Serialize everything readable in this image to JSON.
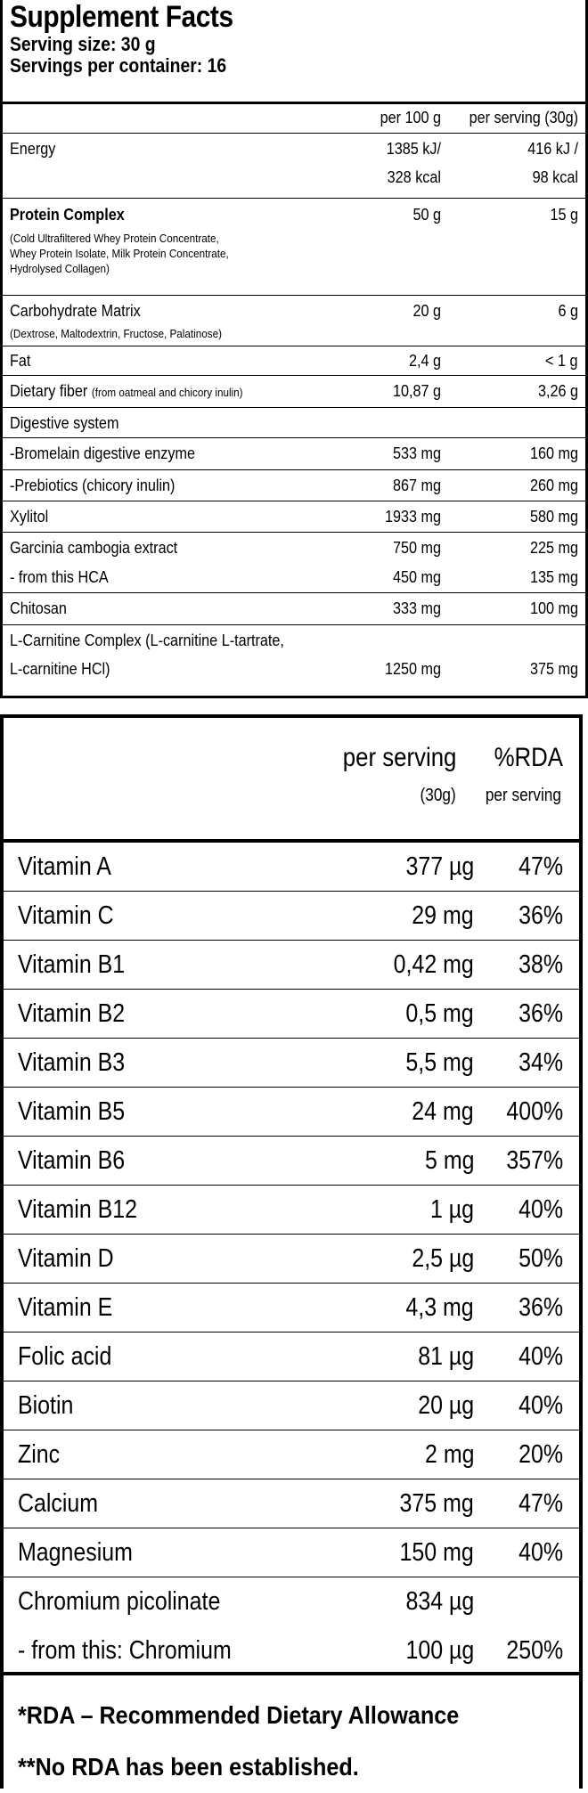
{
  "facts": {
    "title": "Supplement Facts",
    "serving_size": "Serving size: 30 g",
    "servings_per_container": "Servings per container: 16",
    "col_per100": "per 100 g",
    "col_perserving": "per serving (30g)",
    "energy": {
      "name": "Energy",
      "v1a": "1385 kJ/",
      "v1b": "328 kcal",
      "v2a": "416 kJ /",
      "v2b": "98 kcal"
    },
    "protein": {
      "name": "Protein Complex",
      "note1": "(Cold Ultrafiltered Whey Protein Concentrate,",
      "note2": "Whey Protein Isolate, Milk Protein Concentrate,",
      "note3": "Hydrolysed Collagen)",
      "v1": "50 g",
      "v2": "15 g"
    },
    "carb": {
      "name": "Carbohydrate Matrix",
      "note1": "(Dextrose, Maltodextrin, Fructose, Palatinose)",
      "v1": "20 g",
      "v2": "6 g"
    },
    "fat": {
      "name": "Fat",
      "v1": "2,4 g",
      "v2": "< 1 g"
    },
    "fiber": {
      "name": "Dietary fiber",
      "note": "(from oatmeal and chicory inulin)",
      "v1": "10,87 g",
      "v2": "3,26 g"
    },
    "digestive": {
      "name": "Digestive system"
    },
    "bromelain": {
      "name": "-Bromelain digestive enzyme",
      "v1": "533 mg",
      "v2": "160 mg"
    },
    "prebiotics": {
      "name": "-Prebiotics (chicory inulin)",
      "v1": "867 mg",
      "v2": "260 mg"
    },
    "xylitol": {
      "name": "Xylitol",
      "v1": "1933 mg",
      "v2": "580 mg"
    },
    "garcinia": {
      "name": "Garcinia cambogia extract",
      "v1": "750 mg",
      "v2": "225 mg"
    },
    "hca": {
      "name": "- from this HCA",
      "v1": "450 mg",
      "v2": "135 mg"
    },
    "chitosan": {
      "name": "Chitosan",
      "v1": "333 mg",
      "v2": "100 mg"
    },
    "carnitine": {
      "name1": "L-Carnitine Complex (L-carnitine L-tartrate,",
      "name2": "L-carnitine HCl)",
      "v1": "1250 mg",
      "v2": "375 mg"
    }
  },
  "vitamins": {
    "header_per_serving": "per serving",
    "header_rda": "%RDA",
    "header_per_serving_sub": "(30g)",
    "header_rda_sub": "per serving",
    "rows": [
      {
        "name": "Vitamin A",
        "amount": "377 µg",
        "rda": "47%"
      },
      {
        "name": "Vitamin C",
        "amount": "29 mg",
        "rda": "36%"
      },
      {
        "name": "Vitamin B1",
        "amount": "0,42 mg",
        "rda": "38%"
      },
      {
        "name": "Vitamin B2",
        "amount": "0,5 mg",
        "rda": "36%"
      },
      {
        "name": "Vitamin B3",
        "amount": "5,5 mg",
        "rda": "34%"
      },
      {
        "name": "Vitamin B5",
        "amount": "24 mg",
        "rda": "400%"
      },
      {
        "name": "Vitamin B6",
        "amount": "5 mg",
        "rda": "357%"
      },
      {
        "name": "Vitamin B12",
        "amount": "1 µg",
        "rda": "40%"
      },
      {
        "name": "Vitamin D",
        "amount": "2,5 µg",
        "rda": "50%"
      },
      {
        "name": "Vitamin E",
        "amount": "4,3 mg",
        "rda": "36%"
      },
      {
        "name": "Folic acid",
        "amount": "81 µg",
        "rda": "40%"
      },
      {
        "name": "Biotin",
        "amount": "20 µg",
        "rda": "40%"
      },
      {
        "name": "Zinc",
        "amount": "2 mg",
        "rda": "20%"
      },
      {
        "name": "Calcium",
        "amount": "375 mg",
        "rda": "47%"
      },
      {
        "name": "Magnesium",
        "amount": "150 mg",
        "rda": "40%"
      }
    ],
    "chromium": {
      "name": "Chromium picolinate",
      "amount": "834 µg",
      "sub_name": "- from this: Chromium",
      "sub_amount": "100 µg",
      "sub_rda": "250%"
    },
    "footnote1": "*RDA – Recommended Dietary Allowance",
    "footnote2": "**No RDA has been established."
  }
}
